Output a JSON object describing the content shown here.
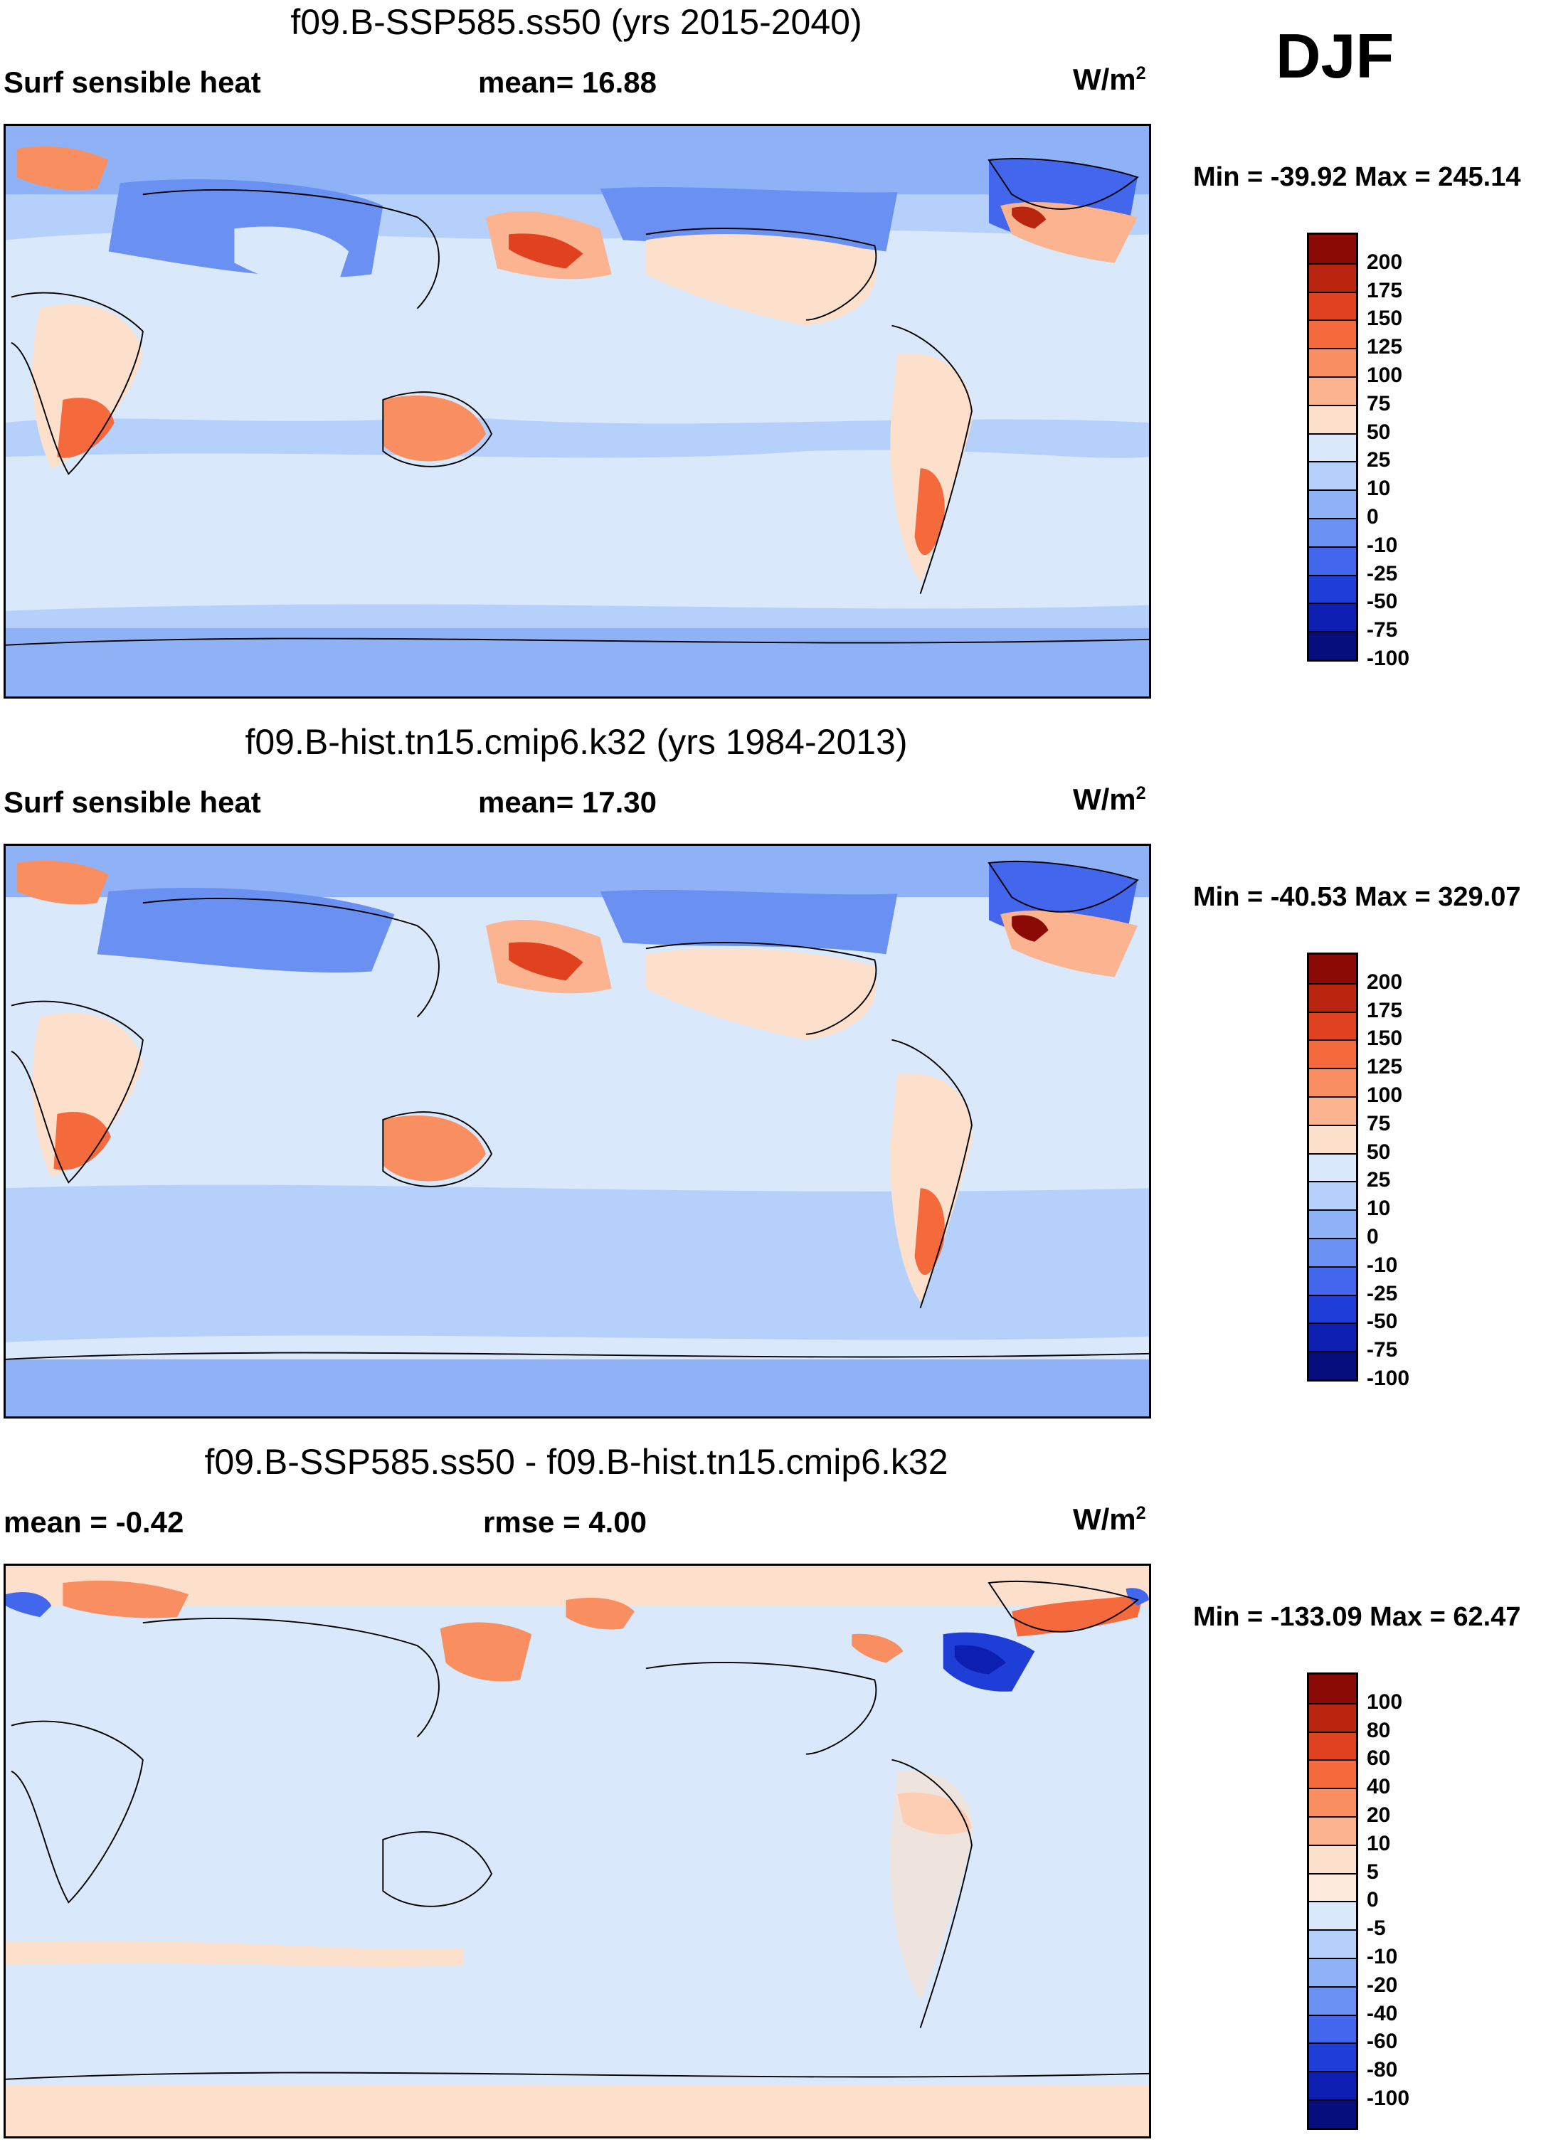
{
  "season": "DJF",
  "panels": [
    {
      "id": "ssp585",
      "title": "f09.B-SSP585.ss50 (yrs 2015-2040)",
      "left_label": "Surf sensible heat",
      "center_label": "mean=  16.88",
      "units": "W/m",
      "units_sup": "2",
      "minmax": "Min = -39.92 Max = 245.14",
      "colorbar": {
        "colors": [
          "#8b0a05",
          "#b9250f",
          "#e0421f",
          "#f46a3c",
          "#f98e60",
          "#fcb38f",
          "#fde0cc",
          "#d9e9fb",
          "#b5d0fa",
          "#8fb2f6",
          "#6a90f2",
          "#4267ec",
          "#1f3ed7",
          "#0d1fb1",
          "#060d7d"
        ],
        "ticks": [
          "200",
          "175",
          "150",
          "125",
          "100",
          "75",
          "50",
          "25",
          "10",
          "0",
          "-10",
          "-25",
          "-50",
          "-75",
          "-100"
        ]
      }
    },
    {
      "id": "hist",
      "title": "f09.B-hist.tn15.cmip6.k32 (yrs 1984-2013)",
      "left_label": "Surf sensible heat",
      "center_label": "mean=  17.30",
      "units": "W/m",
      "units_sup": "2",
      "minmax": "Min = -40.53 Max = 329.07",
      "colorbar": {
        "colors": [
          "#8b0a05",
          "#b9250f",
          "#e0421f",
          "#f46a3c",
          "#f98e60",
          "#fcb38f",
          "#fde0cc",
          "#d9e9fb",
          "#b5d0fa",
          "#8fb2f6",
          "#6a90f2",
          "#4267ec",
          "#1f3ed7",
          "#0d1fb1",
          "#060d7d"
        ],
        "ticks": [
          "200",
          "175",
          "150",
          "125",
          "100",
          "75",
          "50",
          "25",
          "10",
          "0",
          "-10",
          "-25",
          "-50",
          "-75",
          "-100"
        ]
      }
    },
    {
      "id": "diff",
      "title": "f09.B-SSP585.ss50 - f09.B-hist.tn15.cmip6.k32",
      "left_label": "mean =  -0.42",
      "center_label": "rmse =    4.00",
      "units": "W/m",
      "units_sup": "2",
      "minmax": "Min = -133.09 Max =  62.47",
      "colorbar": {
        "colors": [
          "#8b0a05",
          "#b9250f",
          "#e0421f",
          "#f46a3c",
          "#f98e60",
          "#fcb38f",
          "#fde0cc",
          "#fdeadc",
          "#d9e9fb",
          "#b5d0fa",
          "#8fb2f6",
          "#6a90f2",
          "#4267ec",
          "#1f3ed7",
          "#0d1fb1",
          "#060d7d"
        ],
        "ticks": [
          "100",
          "80",
          "60",
          "40",
          "20",
          "10",
          "5",
          "0",
          "-5",
          "-10",
          "-20",
          "-40",
          "-60",
          "-80",
          "-100"
        ]
      }
    }
  ]
}
